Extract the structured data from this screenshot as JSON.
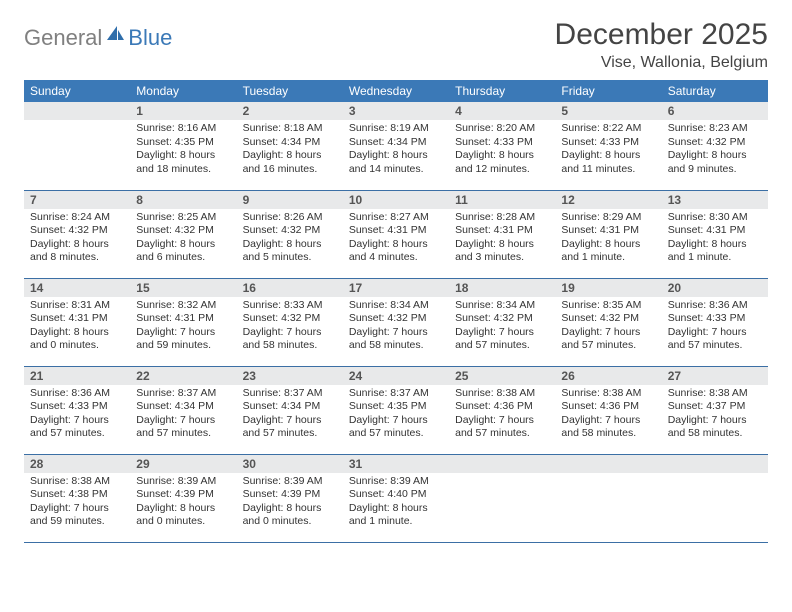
{
  "logo": {
    "part1": "General",
    "part2": "Blue"
  },
  "title": "December 2025",
  "location": "Vise, Wallonia, Belgium",
  "colors": {
    "header_bg": "#3b79b7",
    "header_text": "#ffffff",
    "daynum_bg": "#e8e9ea",
    "rule": "#3b6fa5",
    "logo_gray": "#808080",
    "logo_blue": "#3b79b7"
  },
  "weekdays": [
    "Sunday",
    "Monday",
    "Tuesday",
    "Wednesday",
    "Thursday",
    "Friday",
    "Saturday"
  ],
  "weeks": [
    [
      null,
      {
        "n": "1",
        "sr": "8:16 AM",
        "ss": "4:35 PM",
        "dl": "8 hours and 18 minutes."
      },
      {
        "n": "2",
        "sr": "8:18 AM",
        "ss": "4:34 PM",
        "dl": "8 hours and 16 minutes."
      },
      {
        "n": "3",
        "sr": "8:19 AM",
        "ss": "4:34 PM",
        "dl": "8 hours and 14 minutes."
      },
      {
        "n": "4",
        "sr": "8:20 AM",
        "ss": "4:33 PM",
        "dl": "8 hours and 12 minutes."
      },
      {
        "n": "5",
        "sr": "8:22 AM",
        "ss": "4:33 PM",
        "dl": "8 hours and 11 minutes."
      },
      {
        "n": "6",
        "sr": "8:23 AM",
        "ss": "4:32 PM",
        "dl": "8 hours and 9 minutes."
      }
    ],
    [
      {
        "n": "7",
        "sr": "8:24 AM",
        "ss": "4:32 PM",
        "dl": "8 hours and 8 minutes."
      },
      {
        "n": "8",
        "sr": "8:25 AM",
        "ss": "4:32 PM",
        "dl": "8 hours and 6 minutes."
      },
      {
        "n": "9",
        "sr": "8:26 AM",
        "ss": "4:32 PM",
        "dl": "8 hours and 5 minutes."
      },
      {
        "n": "10",
        "sr": "8:27 AM",
        "ss": "4:31 PM",
        "dl": "8 hours and 4 minutes."
      },
      {
        "n": "11",
        "sr": "8:28 AM",
        "ss": "4:31 PM",
        "dl": "8 hours and 3 minutes."
      },
      {
        "n": "12",
        "sr": "8:29 AM",
        "ss": "4:31 PM",
        "dl": "8 hours and 1 minute."
      },
      {
        "n": "13",
        "sr": "8:30 AM",
        "ss": "4:31 PM",
        "dl": "8 hours and 1 minute."
      }
    ],
    [
      {
        "n": "14",
        "sr": "8:31 AM",
        "ss": "4:31 PM",
        "dl": "8 hours and 0 minutes."
      },
      {
        "n": "15",
        "sr": "8:32 AM",
        "ss": "4:31 PM",
        "dl": "7 hours and 59 minutes."
      },
      {
        "n": "16",
        "sr": "8:33 AM",
        "ss": "4:32 PM",
        "dl": "7 hours and 58 minutes."
      },
      {
        "n": "17",
        "sr": "8:34 AM",
        "ss": "4:32 PM",
        "dl": "7 hours and 58 minutes."
      },
      {
        "n": "18",
        "sr": "8:34 AM",
        "ss": "4:32 PM",
        "dl": "7 hours and 57 minutes."
      },
      {
        "n": "19",
        "sr": "8:35 AM",
        "ss": "4:32 PM",
        "dl": "7 hours and 57 minutes."
      },
      {
        "n": "20",
        "sr": "8:36 AM",
        "ss": "4:33 PM",
        "dl": "7 hours and 57 minutes."
      }
    ],
    [
      {
        "n": "21",
        "sr": "8:36 AM",
        "ss": "4:33 PM",
        "dl": "7 hours and 57 minutes."
      },
      {
        "n": "22",
        "sr": "8:37 AM",
        "ss": "4:34 PM",
        "dl": "7 hours and 57 minutes."
      },
      {
        "n": "23",
        "sr": "8:37 AM",
        "ss": "4:34 PM",
        "dl": "7 hours and 57 minutes."
      },
      {
        "n": "24",
        "sr": "8:37 AM",
        "ss": "4:35 PM",
        "dl": "7 hours and 57 minutes."
      },
      {
        "n": "25",
        "sr": "8:38 AM",
        "ss": "4:36 PM",
        "dl": "7 hours and 57 minutes."
      },
      {
        "n": "26",
        "sr": "8:38 AM",
        "ss": "4:36 PM",
        "dl": "7 hours and 58 minutes."
      },
      {
        "n": "27",
        "sr": "8:38 AM",
        "ss": "4:37 PM",
        "dl": "7 hours and 58 minutes."
      }
    ],
    [
      {
        "n": "28",
        "sr": "8:38 AM",
        "ss": "4:38 PM",
        "dl": "7 hours and 59 minutes."
      },
      {
        "n": "29",
        "sr": "8:39 AM",
        "ss": "4:39 PM",
        "dl": "8 hours and 0 minutes."
      },
      {
        "n": "30",
        "sr": "8:39 AM",
        "ss": "4:39 PM",
        "dl": "8 hours and 0 minutes."
      },
      {
        "n": "31",
        "sr": "8:39 AM",
        "ss": "4:40 PM",
        "dl": "8 hours and 1 minute."
      },
      null,
      null,
      null
    ]
  ],
  "labels": {
    "sunrise": "Sunrise:",
    "sunset": "Sunset:",
    "daylight": "Daylight:"
  }
}
